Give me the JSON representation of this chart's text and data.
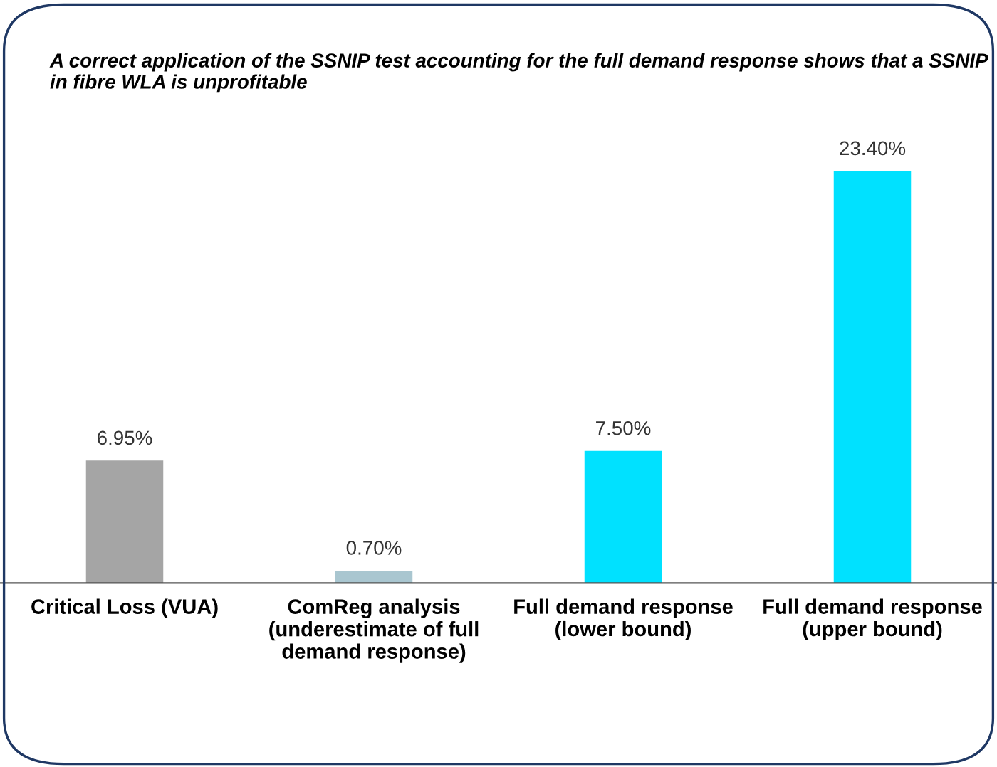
{
  "chart_data": {
    "type": "bar",
    "title": "A correct application of the SSNIP test accounting for the full demand response shows that a SSNIP in fibre WLA is unprofitable",
    "categories": [
      "Critical Loss (VUA)",
      "ComReg analysis\n(underestimate of full\ndemand response)",
      "Full demand response\n(lower bound)",
      "Full demand response\n(upper bound)"
    ],
    "values": [
      6.95,
      0.7,
      7.5,
      23.4
    ],
    "colors": [
      "#a5a5a5",
      "#a9c6d0",
      "#00e1ff",
      "#00e1ff"
    ],
    "value_labels": [
      "6.95%",
      "0.70%",
      "7.50%",
      "23.40%"
    ],
    "grid": false,
    "legend": false
  }
}
